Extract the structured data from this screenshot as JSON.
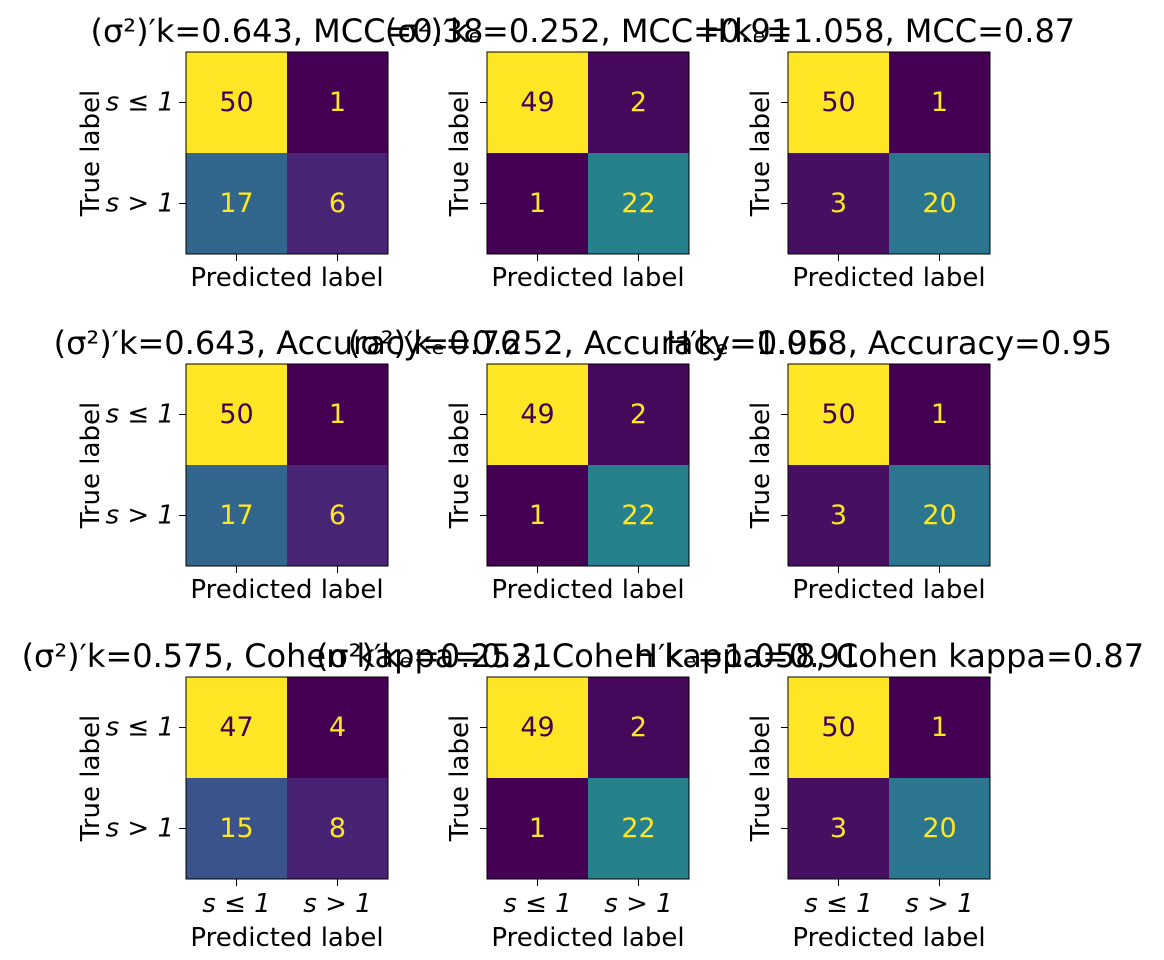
{
  "chart_data": [
    {
      "type": "heatmap",
      "title": "(σ²)′k=0.643, MCC=0.38",
      "xlabel": "Predicted label",
      "ylabel": "True label",
      "row_labels": [
        "s ≤ 1",
        "s > 1"
      ],
      "col_labels": [],
      "values": [
        [
          50,
          1
        ],
        [
          17,
          6
        ]
      ]
    },
    {
      "type": "heatmap",
      "title": "(σ²)′kₑ=0.252, MCC=0.91",
      "xlabel": "Predicted label",
      "ylabel": "True label",
      "row_labels": [],
      "col_labels": [],
      "values": [
        [
          49,
          2
        ],
        [
          1,
          22
        ]
      ]
    },
    {
      "type": "heatmap",
      "title": "H′kₑ=1.058, MCC=0.87",
      "xlabel": "Predicted label",
      "ylabel": "True label",
      "row_labels": [],
      "col_labels": [],
      "values": [
        [
          50,
          1
        ],
        [
          3,
          20
        ]
      ]
    },
    {
      "type": "heatmap",
      "title": "(σ²)′k=0.643, Accuracy=0.76",
      "xlabel": "Predicted label",
      "ylabel": "True label",
      "row_labels": [
        "s ≤ 1",
        "s > 1"
      ],
      "col_labels": [],
      "values": [
        [
          50,
          1
        ],
        [
          17,
          6
        ]
      ]
    },
    {
      "type": "heatmap",
      "title": "(σ²)′kₑ=0.252, Accuracy=0.96",
      "xlabel": "Predicted label",
      "ylabel": "True label",
      "row_labels": [],
      "col_labels": [],
      "values": [
        [
          49,
          2
        ],
        [
          1,
          22
        ]
      ]
    },
    {
      "type": "heatmap",
      "title": "H′kₑ=1.058, Accuracy=0.95",
      "xlabel": "Predicted label",
      "ylabel": "True label",
      "row_labels": [],
      "col_labels": [],
      "values": [
        [
          50,
          1
        ],
        [
          3,
          20
        ]
      ]
    },
    {
      "type": "heatmap",
      "title": "(σ²)′k=0.575, Cohen kappa=0.31",
      "xlabel": "Predicted label",
      "ylabel": "True label",
      "row_labels": [
        "s ≤ 1",
        "s > 1"
      ],
      "col_labels": [
        "s ≤ 1",
        "s > 1"
      ],
      "values": [
        [
          47,
          4
        ],
        [
          15,
          8
        ]
      ]
    },
    {
      "type": "heatmap",
      "title": "(σ²)′kₑ=0.252, Cohen kappa=0.91",
      "xlabel": "Predicted label",
      "ylabel": "True label",
      "row_labels": [],
      "col_labels": [
        "s ≤ 1",
        "s > 1"
      ],
      "values": [
        [
          49,
          2
        ],
        [
          1,
          22
        ]
      ]
    },
    {
      "type": "heatmap",
      "title": "H′kₑ=1.058, Cohen kappa=0.87",
      "xlabel": "Predicted label",
      "ylabel": "True label",
      "row_labels": [],
      "col_labels": [
        "s ≤ 1",
        "s > 1"
      ],
      "values": [
        [
          50,
          1
        ],
        [
          3,
          20
        ]
      ]
    }
  ]
}
